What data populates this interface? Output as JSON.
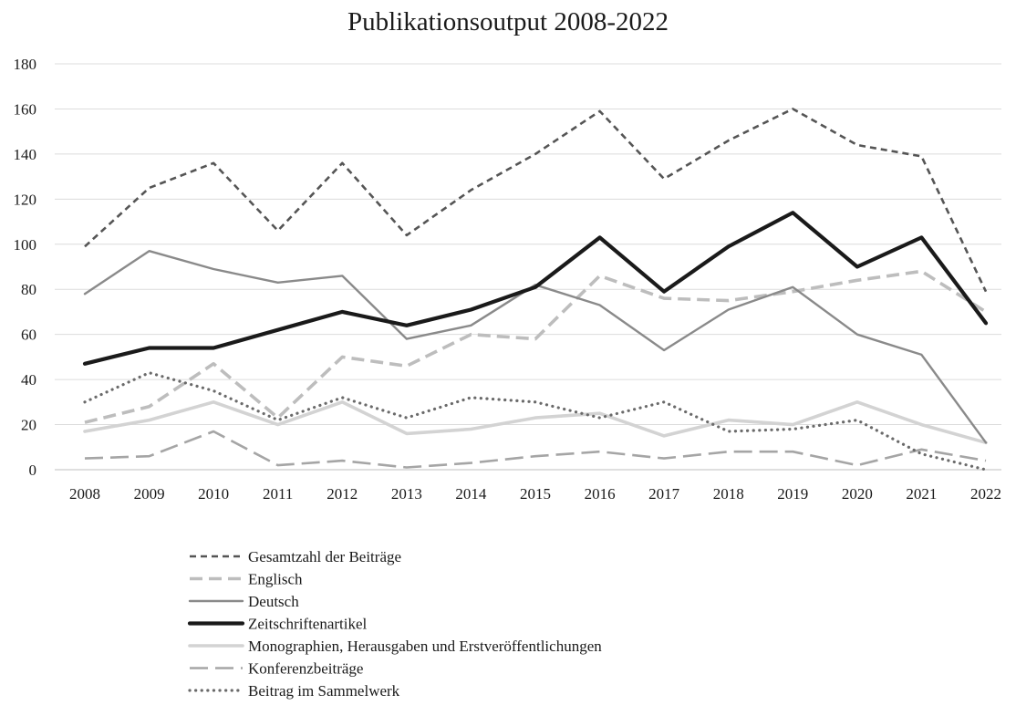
{
  "chart_data": {
    "type": "line",
    "title": "Publikationsoutput 2008-2022",
    "xlabel": "",
    "ylabel": "",
    "categories": [
      "2008",
      "2009",
      "2010",
      "2011",
      "2012",
      "2013",
      "2014",
      "2015",
      "2016",
      "2017",
      "2018",
      "2019",
      "2020",
      "2021",
      "2022"
    ],
    "ylim": [
      0,
      180
    ],
    "yticks": [
      0,
      20,
      40,
      60,
      80,
      100,
      120,
      140,
      160,
      180
    ],
    "grid": true,
    "legend_position": "bottom",
    "series": [
      {
        "name": "Gesamtzahl der Beiträge",
        "color": "#555555",
        "style": "dashed-short",
        "values": [
          99,
          125,
          136,
          106,
          136,
          104,
          124,
          140,
          159,
          129,
          146,
          160,
          144,
          139,
          79
        ]
      },
      {
        "name": "Englisch",
        "color": "#bdbdbd",
        "style": "dashed-long",
        "values": [
          21,
          28,
          47,
          23,
          50,
          46,
          60,
          58,
          86,
          76,
          75,
          79,
          84,
          88,
          70
        ]
      },
      {
        "name": "Deutsch",
        "color": "#8a8a8a",
        "style": "solid",
        "values": [
          78,
          97,
          89,
          83,
          86,
          58,
          64,
          82,
          73,
          53,
          71,
          81,
          60,
          51,
          12
        ]
      },
      {
        "name": "Zeitschriftenartikel",
        "color": "#1a1a1a",
        "style": "solid-thick",
        "values": [
          47,
          54,
          54,
          62,
          70,
          64,
          71,
          81,
          103,
          79,
          99,
          114,
          90,
          103,
          65
        ]
      },
      {
        "name": "Monographien, Herausgaben und Erstveröffentlichungen",
        "color": "#d3d3d3",
        "style": "solid-light",
        "values": [
          17,
          22,
          30,
          20,
          30,
          16,
          18,
          23,
          25,
          15,
          22,
          20,
          30,
          20,
          12
        ]
      },
      {
        "name": "Konferenzbeiträge",
        "color": "#a5a5a5",
        "style": "dashed-long-thin",
        "values": [
          5,
          6,
          17,
          2,
          4,
          1,
          3,
          6,
          8,
          5,
          8,
          8,
          2,
          9,
          4
        ]
      },
      {
        "name": "Beitrag im Sammelwerk",
        "color": "#6a6a6a",
        "style": "dotted",
        "values": [
          30,
          43,
          35,
          22,
          32,
          23,
          32,
          30,
          23,
          30,
          17,
          18,
          22,
          7,
          0
        ]
      }
    ]
  }
}
